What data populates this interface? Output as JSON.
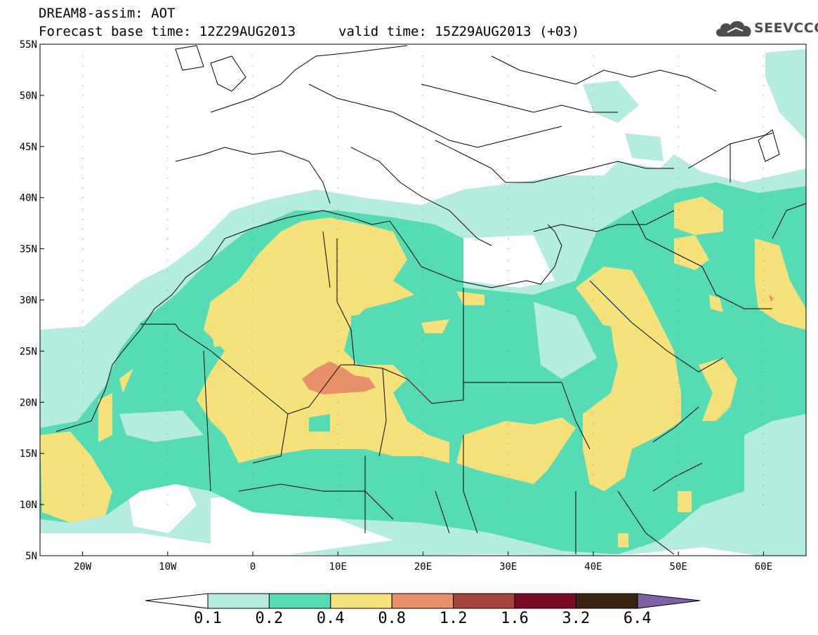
{
  "header": {
    "title_line1": "DREAM8-assim: AOT",
    "title_line2": "Forecast base time: 12Z29AUG2013",
    "valid_time": "valid time: 15Z29AUG2013 (+03)",
    "logo_text": "SEEVCCC"
  },
  "axes": {
    "lat_labels": [
      "55N",
      "50N",
      "45N",
      "40N",
      "35N",
      "30N",
      "25N",
      "20N",
      "15N",
      "10N",
      "5N"
    ],
    "lon_labels": [
      "20W",
      "10W",
      "0",
      "10E",
      "20E",
      "30E",
      "40E",
      "50E",
      "60E"
    ]
  },
  "colorbar": {
    "labels": [
      "0.1",
      "0.2",
      "0.4",
      "0.8",
      "1.2",
      "1.6",
      "3.2",
      "6.4"
    ],
    "colors": [
      "#ffffff",
      "#b4ece0",
      "#55dcb4",
      "#f6e27a",
      "#e8906a",
      "#a8453a",
      "#7d0a25",
      "#3b2412",
      "#8060a8"
    ]
  },
  "map_info": {
    "projection": "lat-lon",
    "lon_range": [
      -25,
      65
    ],
    "lat_range": [
      5,
      55
    ],
    "field": "AOT"
  }
}
